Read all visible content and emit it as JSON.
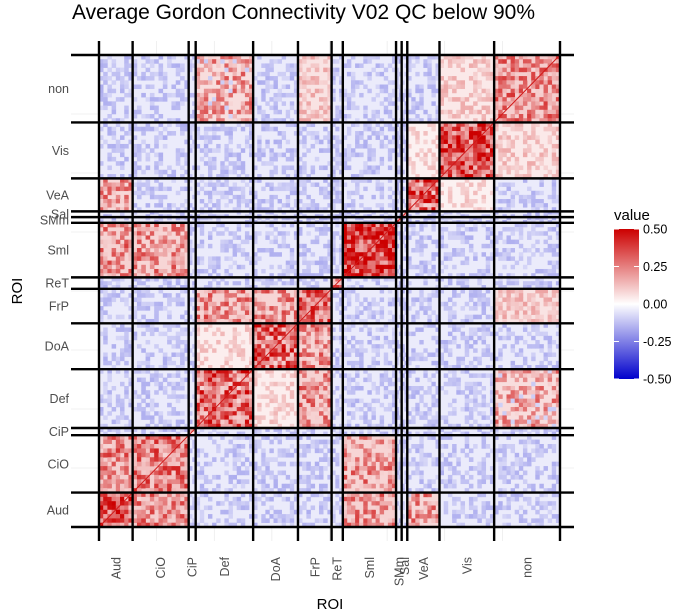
{
  "chart_data": {
    "type": "heatmap",
    "title": "Average Gordon Connectivity V02 QC below 90%",
    "xlabel": "ROI",
    "ylabel": "ROI",
    "networks": [
      {
        "label": "Aud",
        "size": 24
      },
      {
        "label": "CiO",
        "size": 40
      },
      {
        "label": "CiP",
        "size": 5
      },
      {
        "label": "Def",
        "size": 41
      },
      {
        "label": "DoA",
        "size": 32
      },
      {
        "label": "FrP",
        "size": 24
      },
      {
        "label": "ReT",
        "size": 8
      },
      {
        "label": "SMl",
        "size": 38
      },
      {
        "label": "SMm",
        "size": 4
      },
      {
        "label": "Sal",
        "size": 4
      },
      {
        "label": "VeA",
        "size": 23
      },
      {
        "label": "Vis",
        "size": 39
      },
      {
        "label": "non",
        "size": 47
      }
    ],
    "ytick_labels": [
      "Aud",
      "CiO",
      "CiP",
      "Def",
      "DoA",
      "FrP",
      "ReT",
      "Sml",
      "SMm",
      "Sal",
      "VeA",
      "Vis",
      "non"
    ],
    "xtick_labels": [
      "Aud",
      "CiO",
      "CiP",
      "Def",
      "DoA",
      "FrP",
      "ReT",
      "Sml",
      "SMm",
      "Sal",
      "VeA",
      "Vis",
      "non"
    ],
    "within_network_mean": {
      "Aud": 0.32,
      "CiO": 0.22,
      "CiP": 0.1,
      "Def": 0.28,
      "DoA": 0.3,
      "FrP": 0.26,
      "ReT": 0.2,
      "SMl": 0.38,
      "SMm": 0.25,
      "Sal": 0.12,
      "VeA": 0.3,
      "Vis": 0.35,
      "non": 0.18
    },
    "between_network_mean": [
      {
        "pair": [
          "Aud",
          "CiO"
        ],
        "value": 0.18
      },
      {
        "pair": [
          "Aud",
          "SMl"
        ],
        "value": 0.16
      },
      {
        "pair": [
          "Aud",
          "VeA"
        ],
        "value": 0.14
      },
      {
        "pair": [
          "CiO",
          "SMl"
        ],
        "value": 0.15
      },
      {
        "pair": [
          "Def",
          "FrP"
        ],
        "value": 0.16
      },
      {
        "pair": [
          "Def",
          "DoA"
        ],
        "value": 0.06
      },
      {
        "pair": [
          "DoA",
          "FrP"
        ],
        "value": 0.15
      },
      {
        "pair": [
          "Def",
          "non"
        ],
        "value": 0.12
      },
      {
        "pair": [
          "FrP",
          "non"
        ],
        "value": 0.1
      },
      {
        "pair": [
          "Vis",
          "non"
        ],
        "value": 0.08
      },
      {
        "pair": [
          "Vis",
          "VeA"
        ],
        "value": 0.05
      }
    ],
    "colorscale": {
      "low": "#0000cc",
      "mid": "#ffffff",
      "high": "#cc0000",
      "limits": [
        -0.5,
        0.5
      ]
    },
    "legend": {
      "title": "value",
      "ticks": [
        0.5,
        0.25,
        0.0,
        -0.25,
        -0.5
      ],
      "tick_labels": [
        "0.50",
        "0.25",
        "0.00",
        "-0.25",
        "-0.50"
      ],
      "placement": "right"
    },
    "grid": true
  }
}
